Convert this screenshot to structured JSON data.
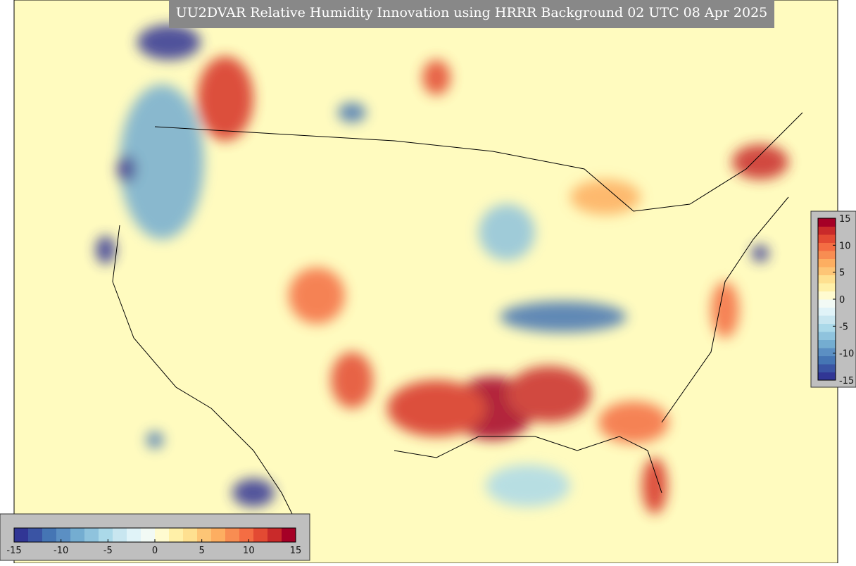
{
  "title": "UU2DVAR Relative Humidity Innovation using HRRR Background 02 UTC 08 Apr 2025",
  "colorbar": {
    "range": [
      -15,
      15
    ],
    "ticks": [
      -15,
      -10,
      -5,
      0,
      5,
      10,
      15
    ],
    "colors": [
      "#313695",
      "#3a54a4",
      "#4575b4",
      "#5b8fc3",
      "#74add1",
      "#8fc3dd",
      "#abd9e9",
      "#c8e6f0",
      "#e0f3f8",
      "#f2faf5",
      "#fffbd0",
      "#fff0a8",
      "#fee090",
      "#fdc576",
      "#fdae61",
      "#f88d52",
      "#f46d43",
      "#e34a33",
      "#c92a2a",
      "#a50026"
    ]
  }
}
